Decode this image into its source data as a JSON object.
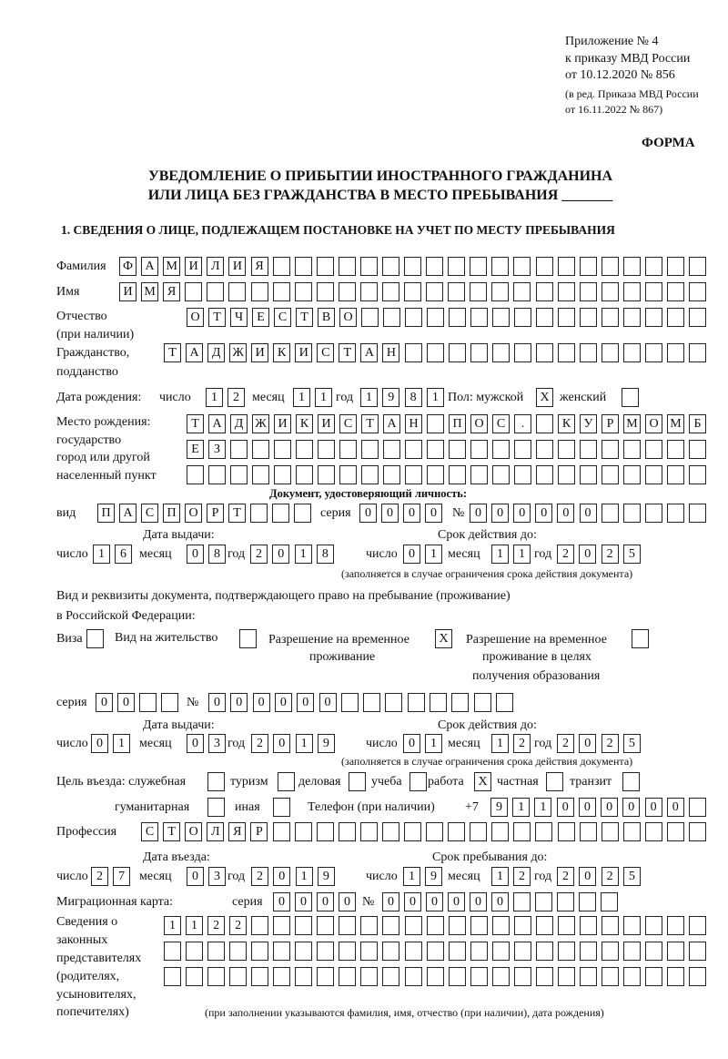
{
  "header": {
    "appendix": "Приложение № 4",
    "order": "к приказу МВД России",
    "order_date": "от 10.12.2020 № 856",
    "edition": "(в ред. Приказа МВД России",
    "edition_date": "от 16.11.2022 № 867)",
    "form_label": "ФОРМА",
    "title_line1": "УВЕДОМЛЕНИЕ О ПРИБЫТИИ ИНОСТРАННОГО ГРАЖДАНИНА",
    "title_line2": "ИЛИ ЛИЦА БЕЗ ГРАЖДАНСТВА В МЕСТО ПРЕБЫВАНИЯ _______",
    "section1": "1. СВЕДЕНИЯ О ЛИЦЕ, ПОДЛЕЖАЩЕМ ПОСТАНОВКЕ НА УЧЕТ ПО МЕСТУ ПРЕБЫВАНИЯ"
  },
  "labels": {
    "surname": "Фамилия",
    "name": "Имя",
    "patronymic": "Отчество",
    "patronymic_note": "(при наличии)",
    "citizenship": "Гражданство,",
    "citizenship2": "подданство",
    "birth_date": "Дата рождения:",
    "day": "число",
    "month": "месяц",
    "year": "год",
    "sex_male": "Пол: мужской",
    "sex_female": "женский",
    "birth_place": "Место рождения:",
    "birth_place2": "государство",
    "birth_place3": "город или другой",
    "birth_place4": "населенный пункт",
    "id_doc": "Документ, удостоверяющий личность:",
    "kind": "вид",
    "series": "серия",
    "number": "№",
    "issue_date": "Дата выдачи:",
    "valid_until": "Срок действия до:",
    "valid_note": "(заполняется в случае ограничения срока действия документа)",
    "right_doc1": "Вид и реквизиты документа, подтверждающего право на пребывание (проживание)",
    "right_doc2": "в Российской Федерации:",
    "visa": "Виза",
    "residence": "Вид на жительство",
    "temp_res1": "Разрешение на временное",
    "temp_res2": "проживание",
    "temp_edu1": "Разрешение на временное",
    "temp_edu2": "проживание в целях",
    "temp_edu3": "получения образования",
    "purpose": "Цель въезда: служебная",
    "tourism": "туризм",
    "business": "деловая",
    "study": "учеба",
    "work": "работа",
    "private": "частная",
    "transit": "транзит",
    "humanitarian": "гуманитарная",
    "other": "иная",
    "phone": "Телефон (при наличии)",
    "phone_prefix": "+7",
    "profession": "Профессия",
    "entry_date": "Дата въезда:",
    "stay_until": "Срок пребывания до:",
    "migration_card": "Миграционная карта:",
    "reps1": "Сведения о",
    "reps2": "законных",
    "reps3": "представителях",
    "reps4": "(родителях,",
    "reps5": "усыновителях,",
    "reps6": "попечителях)",
    "reps_note": "(при заполнении указываются фамилия, имя, отчество (при наличии), дата рождения)"
  },
  "fields": {
    "surname": {
      "value": "ФАМИЛИЯ",
      "boxes": 27
    },
    "name": {
      "value": "ИМЯ",
      "boxes": 27
    },
    "patronymic": {
      "value": "ОТЧЕСТВО",
      "boxes": 24
    },
    "citizenship": {
      "value": "ТАДЖИКИСТАН",
      "boxes": 25
    },
    "birth_day": {
      "value": "12",
      "boxes": 2
    },
    "birth_month": {
      "value": "11",
      "boxes": 2
    },
    "birth_year": {
      "value": "1981",
      "boxes": 4
    },
    "sex_male": {
      "value": "X",
      "boxes": 1
    },
    "sex_female": {
      "value": "",
      "boxes": 1
    },
    "birth_place1": {
      "value": "ТАДЖИКИСТАН ПОС. КУРМОМБ",
      "boxes": 24
    },
    "birth_place2": {
      "value": "ЕЗ",
      "boxes": 24
    },
    "birth_place3": {
      "value": "",
      "boxes": 24
    },
    "id_kind": {
      "value": "ПАСПОРТ",
      "boxes": 10
    },
    "id_series": {
      "value": "0000",
      "boxes": 4
    },
    "id_number": {
      "value": "000000",
      "boxes": 11
    },
    "id_issue_day": {
      "value": "16",
      "boxes": 2
    },
    "id_issue_month": {
      "value": "08",
      "boxes": 2
    },
    "id_issue_year": {
      "value": "2018",
      "boxes": 4
    },
    "id_valid_day": {
      "value": "01",
      "boxes": 2
    },
    "id_valid_month": {
      "value": "11",
      "boxes": 2
    },
    "id_valid_year": {
      "value": "2025",
      "boxes": 4
    },
    "visa": {
      "value": "",
      "boxes": 1
    },
    "residence": {
      "value": "",
      "boxes": 1
    },
    "temp_res": {
      "value": "X",
      "boxes": 1
    },
    "temp_edu": {
      "value": "",
      "boxes": 1
    },
    "rd_series": {
      "value": "00",
      "boxes": 4
    },
    "rd_number": {
      "value": "000000",
      "boxes": 14
    },
    "rd_issue_day": {
      "value": "01",
      "boxes": 2
    },
    "rd_issue_month": {
      "value": "03",
      "boxes": 2
    },
    "rd_issue_year": {
      "value": "2019",
      "boxes": 4
    },
    "rd_valid_day": {
      "value": "01",
      "boxes": 2
    },
    "rd_valid_month": {
      "value": "12",
      "boxes": 2
    },
    "rd_valid_year": {
      "value": "2025",
      "boxes": 4
    },
    "p_official": {
      "value": "",
      "boxes": 1
    },
    "p_tourism": {
      "value": "",
      "boxes": 1
    },
    "p_business": {
      "value": "",
      "boxes": 1
    },
    "p_study": {
      "value": "",
      "boxes": 1
    },
    "p_work": {
      "value": "X",
      "boxes": 1
    },
    "p_private": {
      "value": "",
      "boxes": 1
    },
    "p_transit": {
      "value": "",
      "boxes": 1
    },
    "p_humanitarian": {
      "value": "",
      "boxes": 1
    },
    "p_other": {
      "value": "",
      "boxes": 1
    },
    "phone": {
      "value": "911000000",
      "boxes": 10
    },
    "profession": {
      "value": "СТОЛЯР",
      "boxes": 26
    },
    "entry_day": {
      "value": "27",
      "boxes": 2
    },
    "entry_month": {
      "value": "03",
      "boxes": 2
    },
    "entry_year": {
      "value": "2019",
      "boxes": 4
    },
    "stay_day": {
      "value": "19",
      "boxes": 2
    },
    "stay_month": {
      "value": "12",
      "boxes": 2
    },
    "stay_year": {
      "value": "2025",
      "boxes": 4
    },
    "mc_series": {
      "value": "0000",
      "boxes": 4
    },
    "mc_number": {
      "value": "000000",
      "boxes": 11
    },
    "reps1": {
      "value": "1122",
      "boxes": 25
    },
    "reps2": {
      "value": "",
      "boxes": 25
    },
    "reps3": {
      "value": "",
      "boxes": 25
    }
  }
}
